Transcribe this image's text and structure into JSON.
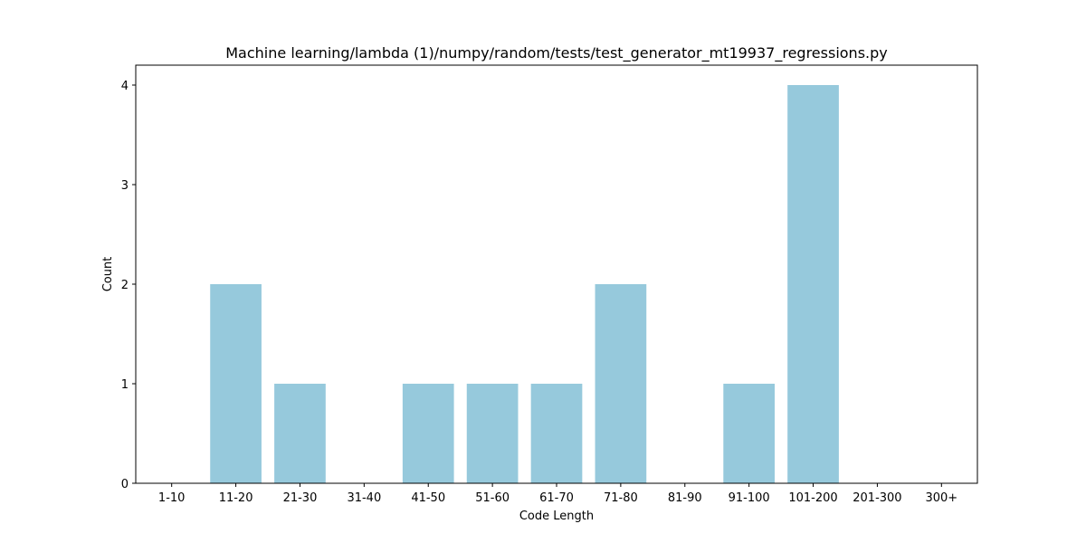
{
  "chart_data": {
    "type": "bar",
    "title": "Machine learning/lambda (1)/numpy/random/tests/test_generator_mt19937_regressions.py",
    "xlabel": "Code Length",
    "ylabel": "Count",
    "categories": [
      "1-10",
      "11-20",
      "21-30",
      "31-40",
      "41-50",
      "51-60",
      "61-70",
      "71-80",
      "81-90",
      "91-100",
      "101-200",
      "201-300",
      "300+"
    ],
    "values": [
      0,
      2,
      1,
      0,
      1,
      1,
      1,
      2,
      0,
      1,
      4,
      0,
      0
    ],
    "ylim": [
      0,
      4.2
    ],
    "yticks": [
      0,
      1,
      2,
      3,
      4
    ],
    "bar_color": "#96c9dc",
    "grid": false,
    "legend": false
  }
}
